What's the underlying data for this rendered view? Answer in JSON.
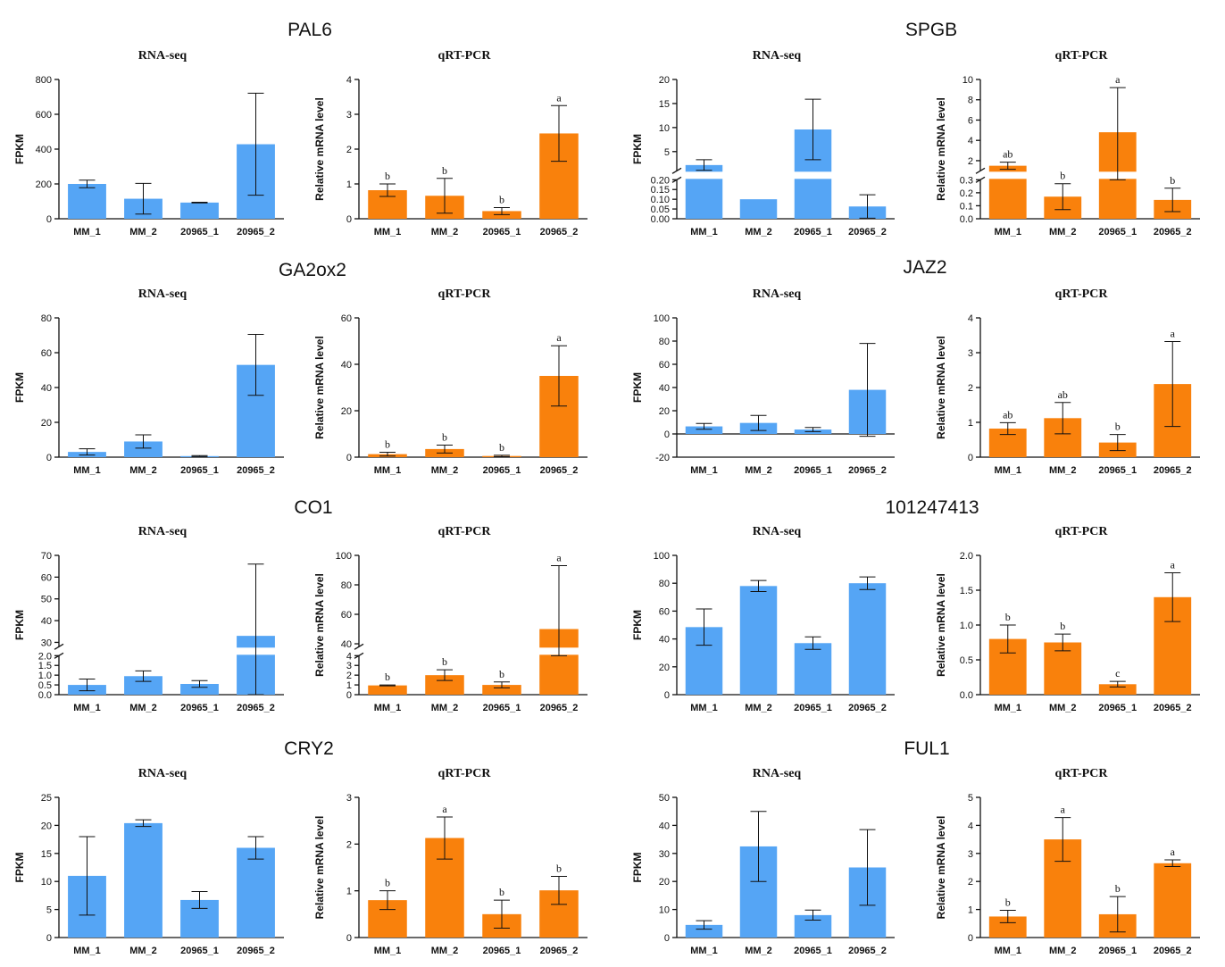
{
  "colors": {
    "rna": "#55A5F5",
    "qpcr": "#F9810C",
    "axis": "#111111"
  },
  "categories": [
    "MM_1",
    "MM_2",
    "20965_1",
    "20965_2"
  ],
  "labels": {
    "rna_title": "RNA-seq",
    "qpcr_title": "qRT-PCR",
    "rna_ylabel": "FPKM",
    "qpcr_ylabel": "Relative mRNA level"
  },
  "genes": [
    {
      "name": "PAL6"
    },
    {
      "name": "SPGB"
    },
    {
      "name": "GA2ox2"
    },
    {
      "name": "JAZ2"
    },
    {
      "name": "CO1"
    },
    {
      "name": "101247413"
    },
    {
      "name": "CRY2"
    },
    {
      "name": "FUL1"
    }
  ],
  "chart_data": [
    {
      "type": "bar",
      "gene": "PAL6",
      "title": "RNA-seq",
      "ylabel": "FPKM",
      "color": "rna",
      "ylim": [
        0,
        800
      ],
      "yticks": [
        "0",
        "200",
        "400",
        "600",
        "800"
      ],
      "values": [
        200,
        115,
        93,
        428
      ],
      "errors": [
        22,
        88,
        2,
        293
      ],
      "sig": []
    },
    {
      "type": "bar",
      "gene": "PAL6",
      "title": "qRT-PCR",
      "ylabel": "Relative mRNA level",
      "color": "qpcr",
      "ylim": [
        0,
        4
      ],
      "yticks": [
        "0",
        "1",
        "2",
        "3",
        "4"
      ],
      "values": [
        0.82,
        0.66,
        0.22,
        2.45
      ],
      "errors": [
        0.18,
        0.5,
        0.1,
        0.8
      ],
      "sig": [
        "b",
        "b",
        "b",
        "a"
      ]
    },
    {
      "type": "bar",
      "gene": "SPGB",
      "title": "RNA-seq",
      "ylabel": "FPKM",
      "color": "rna",
      "broken": {
        "lower": [
          0,
          0.2
        ],
        "upper": [
          1,
          20
        ],
        "lower_frac": 0.28
      },
      "lower_ticks": [
        "0.00",
        "0.05",
        "0.10",
        "0.15",
        "0.20"
      ],
      "upper_ticks": [
        "5",
        "10",
        "15",
        "20"
      ],
      "values": [
        2.2,
        0.1,
        9.6,
        0.063
      ],
      "errors": [
        1.1,
        0,
        6.3,
        0.06
      ],
      "sig": []
    },
    {
      "type": "bar",
      "gene": "SPGB",
      "title": "qRT-PCR",
      "ylabel": "Relative mRNA level",
      "color": "qpcr",
      "broken": {
        "lower": [
          0,
          0.3
        ],
        "upper": [
          1,
          10
        ],
        "lower_frac": 0.28
      },
      "lower_ticks": [
        "0.0",
        "0.1",
        "0.2",
        "0.3"
      ],
      "upper_ticks": [
        "2",
        "4",
        "6",
        "8",
        "10"
      ],
      "values": [
        1.5,
        0.17,
        4.8,
        0.145
      ],
      "errors": [
        0.35,
        0.1,
        4.4,
        0.09
      ],
      "sig": [
        "ab",
        "b",
        "a",
        "b"
      ]
    },
    {
      "type": "bar",
      "gene": "GA2ox2",
      "title": "RNA-seq",
      "ylabel": "FPKM",
      "color": "rna",
      "ylim": [
        0,
        80
      ],
      "yticks": [
        "0",
        "20",
        "40",
        "60",
        "80"
      ],
      "values": [
        3,
        9,
        0.6,
        53
      ],
      "errors": [
        1.8,
        3.8,
        0.3,
        17.5
      ],
      "sig": []
    },
    {
      "type": "bar",
      "gene": "GA2ox2",
      "title": "qRT-PCR",
      "ylabel": "Relative mRNA level",
      "color": "qpcr",
      "ylim": [
        0,
        60
      ],
      "yticks": [
        "0",
        "20",
        "40",
        "60"
      ],
      "values": [
        1.3,
        3.5,
        0.5,
        35
      ],
      "errors": [
        0.8,
        1.7,
        0.3,
        13
      ],
      "sig": [
        "b",
        "b",
        "b",
        "a"
      ]
    },
    {
      "type": "bar",
      "gene": "JAZ2",
      "title": "RNA-seq",
      "ylabel": "FPKM",
      "color": "rna",
      "ylim": [
        -20,
        100
      ],
      "yticks": [
        "-20",
        "0",
        "20",
        "40",
        "60",
        "80",
        "100"
      ],
      "zero_line": true,
      "values": [
        6.5,
        9.5,
        3.8,
        38
      ],
      "errors": [
        2.5,
        6.5,
        1.8,
        40
      ],
      "sig": []
    },
    {
      "type": "bar",
      "gene": "JAZ2",
      "title": "qRT-PCR",
      "ylabel": "Relative mRNA level",
      "color": "qpcr",
      "ylim": [
        0,
        4
      ],
      "yticks": [
        "0",
        "1",
        "2",
        "3",
        "4"
      ],
      "values": [
        0.82,
        1.12,
        0.42,
        2.1
      ],
      "errors": [
        0.17,
        0.45,
        0.23,
        1.22
      ],
      "sig": [
        "ab",
        "ab",
        "b",
        "a"
      ]
    },
    {
      "type": "bar",
      "gene": "CO1",
      "title": "RNA-seq",
      "ylabel": "FPKM",
      "color": "rna",
      "broken": {
        "lower": [
          0,
          2
        ],
        "upper": [
          28,
          70
        ],
        "lower_frac": 0.28
      },
      "lower_ticks": [
        "0.0",
        "0.5",
        "1.0",
        "1.5",
        "2.0"
      ],
      "upper_ticks": [
        "30",
        "40",
        "50",
        "60",
        "70"
      ],
      "values": [
        0.5,
        0.95,
        0.55,
        33
      ],
      "errors": [
        0.3,
        0.27,
        0.17,
        33
      ],
      "sig": []
    },
    {
      "type": "bar",
      "gene": "CO1",
      "title": "qRT-PCR",
      "ylabel": "Relative mRNA level",
      "color": "qpcr",
      "broken": {
        "lower": [
          0,
          4
        ],
        "upper": [
          38,
          100
        ],
        "lower_frac": 0.28
      },
      "lower_ticks": [
        "0",
        "1",
        "2",
        "3",
        "4"
      ],
      "upper_ticks": [
        "40",
        "60",
        "80",
        "100"
      ],
      "values": [
        0.95,
        2.0,
        1.0,
        50
      ],
      "errors": [
        0.05,
        0.55,
        0.3,
        43
      ],
      "sig": [
        "b",
        "b",
        "b",
        "a"
      ]
    },
    {
      "type": "bar",
      "gene": "101247413",
      "title": "RNA-seq",
      "ylabel": "FPKM",
      "color": "rna",
      "ylim": [
        0,
        100
      ],
      "yticks": [
        "0",
        "20",
        "40",
        "60",
        "80",
        "100"
      ],
      "values": [
        48.5,
        78,
        37,
        80
      ],
      "errors": [
        13,
        4,
        4.5,
        4.5
      ],
      "sig": []
    },
    {
      "type": "bar",
      "gene": "101247413",
      "title": "qRT-PCR",
      "ylabel": "Relative mRNA level",
      "color": "qpcr",
      "ylim": [
        0,
        2.0
      ],
      "yticks": [
        "0.0",
        "0.5",
        "1.0",
        "1.5",
        "2.0"
      ],
      "values": [
        0.8,
        0.75,
        0.15,
        1.4
      ],
      "errors": [
        0.2,
        0.12,
        0.04,
        0.35
      ],
      "sig": [
        "b",
        "b",
        "c",
        "a"
      ]
    },
    {
      "type": "bar",
      "gene": "CRY2",
      "title": "RNA-seq",
      "ylabel": "FPKM",
      "color": "rna",
      "ylim": [
        0,
        25
      ],
      "yticks": [
        "0",
        "5",
        "10",
        "15",
        "20",
        "25"
      ],
      "values": [
        11,
        20.4,
        6.7,
        16
      ],
      "errors": [
        7,
        0.6,
        1.5,
        2
      ],
      "sig": []
    },
    {
      "type": "bar",
      "gene": "CRY2",
      "title": "qRT-PCR",
      "ylabel": "Relative mRNA level",
      "color": "qpcr",
      "ylim": [
        0,
        3
      ],
      "yticks": [
        "0",
        "1",
        "2",
        "3"
      ],
      "values": [
        0.8,
        2.13,
        0.5,
        1.01
      ],
      "errors": [
        0.2,
        0.45,
        0.3,
        0.3
      ],
      "sig": [
        "b",
        "a",
        "b",
        "b"
      ]
    },
    {
      "type": "bar",
      "gene": "FUL1",
      "title": "RNA-seq",
      "ylabel": "FPKM",
      "color": "rna",
      "ylim": [
        0,
        50
      ],
      "yticks": [
        "0",
        "10",
        "20",
        "30",
        "40",
        "50"
      ],
      "values": [
        4.5,
        32.5,
        8,
        25
      ],
      "errors": [
        1.5,
        12.5,
        1.8,
        13.5
      ],
      "sig": []
    },
    {
      "type": "bar",
      "gene": "FUL1",
      "title": "qRT-PCR",
      "ylabel": "Relative mRNA level",
      "color": "qpcr",
      "ylim": [
        0,
        5
      ],
      "yticks": [
        "0",
        "1",
        "2",
        "3",
        "4",
        "5"
      ],
      "values": [
        0.75,
        3.5,
        0.83,
        2.65
      ],
      "errors": [
        0.22,
        0.78,
        0.63,
        0.12
      ],
      "sig": [
        "b",
        "a",
        "b",
        "a"
      ]
    }
  ]
}
